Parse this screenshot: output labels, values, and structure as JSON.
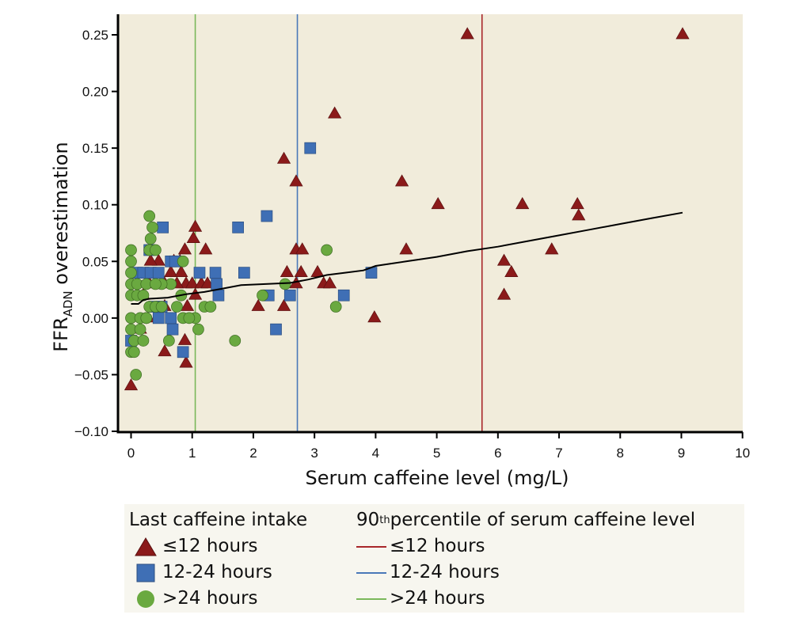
{
  "chart_data": {
    "type": "scatter",
    "title": "",
    "xlabel": "Serum caffeine level (mg/L)",
    "ylabel_main": "FFR",
    "ylabel_sub": "ADN",
    "ylabel_rest": " overestimation",
    "xlim": [
      0,
      10
    ],
    "ylim": [
      -0.1,
      0.25
    ],
    "xticks": [
      "0",
      "1",
      "2",
      "3",
      "4",
      "5",
      "6",
      "7",
      "8",
      "9",
      "10"
    ],
    "xtick_values": [
      0,
      1,
      2,
      3,
      4,
      5,
      6,
      7,
      8,
      9,
      10
    ],
    "yticks": [
      "0.25",
      "0.20",
      "0.15",
      "0.10",
      "0.05",
      "0.00",
      "−0.05",
      "−0.10"
    ],
    "ytick_values": [
      0.25,
      0.2,
      0.15,
      0.1,
      0.05,
      0.0,
      -0.05,
      -0.1
    ],
    "grid": false,
    "colors": {
      "background": "#f1ecdb",
      "triangle": "#8b1a1a",
      "square": "#3f6fb5",
      "circle": "#6aa940",
      "line_red": "#a8262a",
      "line_blue": "#4a78b8",
      "line_green": "#7ab85a",
      "trend": "#000000"
    },
    "series": [
      {
        "name": "≤12 hours",
        "marker": "triangle",
        "points": [
          [
            5.5,
            0.25
          ],
          [
            9.02,
            0.25
          ],
          [
            3.33,
            0.18
          ],
          [
            2.5,
            0.14
          ],
          [
            2.7,
            0.12
          ],
          [
            4.43,
            0.12
          ],
          [
            5.02,
            0.1
          ],
          [
            6.4,
            0.1
          ],
          [
            7.3,
            0.1
          ],
          [
            7.32,
            0.09
          ],
          [
            4.5,
            0.06
          ],
          [
            6.88,
            0.06
          ],
          [
            6.1,
            0.05
          ],
          [
            6.22,
            0.04
          ],
          [
            6.1,
            0.02
          ],
          [
            3.98,
            0.0
          ],
          [
            2.7,
            0.06
          ],
          [
            2.8,
            0.06
          ],
          [
            3.05,
            0.04
          ],
          [
            2.55,
            0.04
          ],
          [
            2.78,
            0.04
          ],
          [
            3.15,
            0.03
          ],
          [
            3.25,
            0.03
          ],
          [
            2.7,
            0.03
          ],
          [
            2.5,
            0.01
          ],
          [
            2.08,
            0.01
          ],
          [
            1.05,
            0.08
          ],
          [
            1.02,
            0.07
          ],
          [
            1.22,
            0.06
          ],
          [
            0.88,
            0.06
          ],
          [
            0.7,
            0.05
          ],
          [
            0.8,
            0.05
          ],
          [
            0.45,
            0.05
          ],
          [
            0.32,
            0.05
          ],
          [
            0.55,
            0.03
          ],
          [
            0.65,
            0.04
          ],
          [
            0.82,
            0.04
          ],
          [
            0.9,
            0.03
          ],
          [
            1.0,
            0.03
          ],
          [
            1.15,
            0.03
          ],
          [
            1.25,
            0.03
          ],
          [
            0.75,
            0.03
          ],
          [
            1.05,
            0.02
          ],
          [
            0.92,
            0.01
          ],
          [
            0.55,
            0.01
          ],
          [
            0.3,
            0.03
          ],
          [
            0.88,
            -0.02
          ],
          [
            0.9,
            -0.04
          ],
          [
            0.55,
            -0.03
          ],
          [
            0.0,
            -0.06
          ],
          [
            0.2,
            0.02
          ],
          [
            0.15,
            -0.01
          ],
          [
            0.42,
            0.0
          ]
        ]
      },
      {
        "name": "12-24 hours",
        "marker": "square",
        "points": [
          [
            2.93,
            0.15
          ],
          [
            2.22,
            0.09
          ],
          [
            1.75,
            0.08
          ],
          [
            0.52,
            0.08
          ],
          [
            1.85,
            0.04
          ],
          [
            0.3,
            0.06
          ],
          [
            2.25,
            0.02
          ],
          [
            2.6,
            0.02
          ],
          [
            3.48,
            0.02
          ],
          [
            3.93,
            0.04
          ],
          [
            2.37,
            -0.01
          ],
          [
            0.85,
            -0.03
          ],
          [
            0.1,
            0.04
          ],
          [
            0.2,
            0.04
          ],
          [
            0.32,
            0.04
          ],
          [
            0.45,
            0.04
          ],
          [
            1.38,
            0.04
          ],
          [
            1.12,
            0.04
          ],
          [
            0.65,
            0.05
          ],
          [
            0.72,
            0.05
          ],
          [
            1.4,
            0.03
          ],
          [
            1.43,
            0.02
          ],
          [
            0.38,
            0.01
          ],
          [
            0.5,
            0.01
          ],
          [
            0.65,
            0.0
          ],
          [
            0.45,
            0.0
          ],
          [
            0.68,
            -0.01
          ],
          [
            0.0,
            -0.02
          ]
        ]
      },
      {
        "name": ">24 hours",
        "marker": "circle",
        "points": [
          [
            0.3,
            0.09
          ],
          [
            0.35,
            0.08
          ],
          [
            0.32,
            0.07
          ],
          [
            0.3,
            0.06
          ],
          [
            0.4,
            0.06
          ],
          [
            0.0,
            0.06
          ],
          [
            0.0,
            0.05
          ],
          [
            0.0,
            0.04
          ],
          [
            0.0,
            0.03
          ],
          [
            0.1,
            0.03
          ],
          [
            0.25,
            0.03
          ],
          [
            0.0,
            0.02
          ],
          [
            0.1,
            0.02
          ],
          [
            0.2,
            0.02
          ],
          [
            0.3,
            0.01
          ],
          [
            0.4,
            0.01
          ],
          [
            0.5,
            0.01
          ],
          [
            0.0,
            0.0
          ],
          [
            0.15,
            0.0
          ],
          [
            0.25,
            0.0
          ],
          [
            0.0,
            -0.01
          ],
          [
            0.15,
            -0.01
          ],
          [
            0.05,
            -0.02
          ],
          [
            0.2,
            -0.02
          ],
          [
            0.0,
            -0.03
          ],
          [
            0.05,
            -0.03
          ],
          [
            0.08,
            -0.05
          ],
          [
            0.85,
            0.05
          ],
          [
            0.82,
            0.02
          ],
          [
            0.65,
            0.03
          ],
          [
            0.5,
            0.03
          ],
          [
            0.4,
            0.03
          ],
          [
            0.75,
            0.01
          ],
          [
            0.85,
            0.0
          ],
          [
            0.62,
            -0.02
          ],
          [
            1.05,
            0.0
          ],
          [
            1.1,
            -0.01
          ],
          [
            1.2,
            0.01
          ],
          [
            1.3,
            0.01
          ],
          [
            1.7,
            -0.02
          ],
          [
            2.15,
            0.02
          ],
          [
            2.52,
            0.03
          ],
          [
            3.2,
            0.06
          ],
          [
            3.35,
            0.01
          ],
          [
            0.25,
            0.0
          ],
          [
            0.95,
            0.0
          ]
        ]
      }
    ],
    "reference_lines": [
      {
        "name": "≤12 hours",
        "x": 5.74,
        "color_key": "line_red"
      },
      {
        "name": "12-24 hours",
        "x": 2.72,
        "color_key": "line_blue"
      },
      {
        "name": ">24 hours",
        "x": 1.05,
        "color_key": "line_green"
      }
    ],
    "trend_line": [
      [
        0.0,
        0.0125
      ],
      [
        0.12,
        0.0125
      ],
      [
        0.2,
        0.016
      ],
      [
        0.3,
        0.017
      ],
      [
        0.6,
        0.018
      ],
      [
        0.9,
        0.021
      ],
      [
        1.2,
        0.023
      ],
      [
        1.5,
        0.026
      ],
      [
        1.8,
        0.029
      ],
      [
        2.2,
        0.03
      ],
      [
        2.6,
        0.031
      ],
      [
        2.9,
        0.034
      ],
      [
        3.2,
        0.038
      ],
      [
        3.5,
        0.04
      ],
      [
        3.8,
        0.042
      ],
      [
        4.0,
        0.046
      ],
      [
        4.5,
        0.05
      ],
      [
        5.0,
        0.054
      ],
      [
        5.5,
        0.059
      ],
      [
        6.0,
        0.063
      ],
      [
        6.5,
        0.068
      ],
      [
        7.0,
        0.073
      ],
      [
        7.5,
        0.078
      ],
      [
        8.0,
        0.083
      ],
      [
        8.5,
        0.088
      ],
      [
        9.02,
        0.093
      ]
    ]
  },
  "legend": {
    "marker_title": "Last caffeine intake",
    "marker_items": [
      "≤12 hours",
      "12-24 hours",
      ">24 hours"
    ],
    "line_title_prefix": "90",
    "line_title_sup": "th",
    "line_title_suffix": " percentile of serum caffeine level",
    "line_items": [
      "≤12 hours",
      "12-24 hours",
      ">24 hours"
    ]
  }
}
